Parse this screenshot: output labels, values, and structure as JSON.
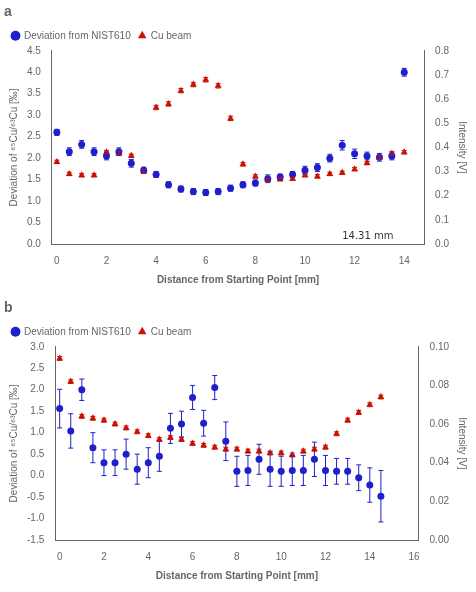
{
  "chart_data": [
    {
      "type": "scatter",
      "title": "a",
      "x": [
        0.0,
        0.5,
        1.0,
        1.5,
        2.0,
        2.5,
        3.0,
        3.5,
        4.0,
        4.5,
        5.0,
        5.5,
        6.0,
        6.5,
        7.0,
        7.5,
        8.0,
        8.5,
        9.0,
        9.5,
        10.0,
        10.5,
        11.0,
        11.5,
        12.0,
        12.5,
        13.0,
        13.5,
        14.0
      ],
      "series": [
        {
          "name": "Deviation from NIST610",
          "color": "#1f1fcc",
          "marker": "circle",
          "values": [
            2.6,
            2.15,
            2.32,
            2.15,
            2.05,
            2.15,
            1.88,
            1.72,
            1.62,
            1.38,
            1.28,
            1.22,
            1.2,
            1.22,
            1.3,
            1.38,
            1.42,
            1.52,
            1.56,
            1.62,
            1.72,
            1.78,
            2.0,
            2.3,
            2.1,
            2.05,
            2.02,
            2.05,
            4.0
          ],
          "errors": [
            0.07,
            0.09,
            0.09,
            0.09,
            0.09,
            0.09,
            0.09,
            0.07,
            0.07,
            0.07,
            0.07,
            0.07,
            0.07,
            0.07,
            0.07,
            0.07,
            0.07,
            0.09,
            0.07,
            0.07,
            0.09,
            0.09,
            0.09,
            0.11,
            0.11,
            0.09,
            0.09,
            0.09,
            0.09
          ]
        },
        {
          "name": "Cu beam",
          "color": "#cc1100",
          "marker": "triangle",
          "axis": "y2",
          "values": [
            0.34,
            0.29,
            0.285,
            0.285,
            0.38,
            0.375,
            0.365,
            0.3,
            0.565,
            0.58,
            0.635,
            0.66,
            0.68,
            0.655,
            0.52,
            0.33,
            0.28,
            0.265,
            0.268,
            0.27,
            0.285,
            0.28,
            0.29,
            0.295,
            0.31,
            0.335,
            0.358,
            0.375,
            0.38
          ],
          "errors": [
            0.007,
            0.007,
            0.007,
            0.007,
            0.007,
            0.007,
            0.007,
            0.007,
            0.009,
            0.009,
            0.009,
            0.009,
            0.009,
            0.009,
            0.009,
            0.007,
            0.007,
            0.007,
            0.007,
            0.007,
            0.007,
            0.007,
            0.007,
            0.007,
            0.007,
            0.007,
            0.007,
            0.007,
            0.007
          ]
        }
      ],
      "xlabel": "Distance from Starting Point [mm]",
      "ylabel": "Deviation of ⁶⁵Cu/⁶³Cu [‰]",
      "y2label": "Intensity [V]",
      "xlim": [
        -0.2,
        14.8
      ],
      "xticks": [
        0,
        2,
        4,
        6,
        8,
        10,
        12,
        14
      ],
      "ylim": [
        0.0,
        4.5
      ],
      "yticks": [
        {
          "value": 0,
          "label": "0.0"
        },
        0.5,
        {
          "value": 1,
          "label": "1.0"
        },
        1.5,
        {
          "value": 2,
          "label": "2.0"
        },
        2.5,
        {
          "value": 3,
          "label": "3.0"
        },
        3.5,
        {
          "value": 4,
          "label": "4.0"
        },
        4.5
      ],
      "y2lim": [
        0.0,
        0.8
      ],
      "y2ticks": [
        {
          "value": 0,
          "label": "0.0"
        },
        0.1,
        0.2,
        0.3,
        0.4,
        0.5,
        0.6,
        0.7,
        0.8
      ],
      "annotations": [
        {
          "text": "14.31 mm",
          "x": 11.5,
          "y": 0.12
        }
      ],
      "legend": "upper left",
      "grid": false
    },
    {
      "type": "scatter",
      "title": "b",
      "x": [
        0.0,
        0.5,
        1.0,
        1.5,
        2.0,
        2.5,
        3.0,
        3.5,
        4.0,
        4.5,
        5.0,
        5.5,
        6.0,
        6.5,
        7.0,
        7.5,
        8.0,
        8.5,
        9.0,
        9.5,
        10.0,
        10.5,
        11.0,
        11.5,
        12.0,
        12.5,
        13.0,
        13.5,
        14.0,
        14.5
      ],
      "series": [
        {
          "name": "Deviation from NIST610",
          "color": "#1f1fcc",
          "marker": "circle",
          "values": [
            1.56,
            1.04,
            2.0,
            0.65,
            0.3,
            0.3,
            0.5,
            0.15,
            0.3,
            0.45,
            1.1,
            1.2,
            1.82,
            1.22,
            2.05,
            0.8,
            0.1,
            0.12,
            0.38,
            0.15,
            0.1,
            0.12,
            0.12,
            0.38,
            0.12,
            0.1,
            0.1,
            -0.05,
            -0.22,
            -0.48
          ],
          "errors": [
            0.45,
            0.4,
            0.25,
            0.35,
            0.3,
            0.3,
            0.35,
            0.35,
            0.35,
            0.35,
            0.35,
            0.3,
            0.28,
            0.3,
            0.28,
            0.45,
            0.35,
            0.35,
            0.35,
            0.4,
            0.35,
            0.35,
            0.35,
            0.4,
            0.35,
            0.3,
            0.3,
            0.3,
            0.4,
            0.6
          ]
        },
        {
          "name": "Cu beam",
          "color": "#cc1100",
          "marker": "triangle",
          "axis": "y2",
          "values": [
            0.094,
            0.082,
            0.064,
            0.063,
            0.062,
            0.06,
            0.058,
            0.056,
            0.054,
            0.052,
            0.053,
            0.052,
            0.05,
            0.049,
            0.048,
            0.047,
            0.047,
            0.046,
            0.046,
            0.045,
            0.045,
            0.044,
            0.046,
            0.047,
            0.048,
            0.055,
            0.062,
            0.066,
            0.07,
            0.074
          ],
          "errors": [
            0.001,
            0.001,
            0.001,
            0.001,
            0.001,
            0.001,
            0.001,
            0.001,
            0.001,
            0.001,
            0.001,
            0.001,
            0.001,
            0.001,
            0.001,
            0.001,
            0.001,
            0.001,
            0.001,
            0.001,
            0.001,
            0.001,
            0.001,
            0.001,
            0.001,
            0.001,
            0.001,
            0.001,
            0.001,
            0.001
          ]
        }
      ],
      "xlabel": "Distance from Starting Point [mm]",
      "ylabel": "Deviation of ⁶⁵Cu/⁶³Cu [‰]",
      "y2label": "Intensity [V]",
      "xlim": [
        -0.2,
        16.2
      ],
      "xticks": [
        0,
        2,
        4,
        6,
        8,
        10,
        12,
        14,
        16
      ],
      "ylim": [
        -1.5,
        3.0
      ],
      "yticks": [
        -1.5,
        {
          "value": -1,
          "label": "-1.0"
        },
        -0.5,
        {
          "value": 0,
          "label": "0.0"
        },
        0.5,
        {
          "value": 1,
          "label": "1.0"
        },
        1.5,
        {
          "value": 2,
          "label": "2.0"
        },
        2.5,
        {
          "value": 3,
          "label": "3.0"
        }
      ],
      "y2lim": [
        0.0,
        0.1
      ],
      "y2ticks": [
        {
          "value": 0,
          "label": "0.00"
        },
        0.02,
        0.04,
        0.06,
        0.08,
        {
          "value": 0.1,
          "label": "0.10"
        }
      ],
      "legend": "upper left",
      "grid": false
    }
  ]
}
